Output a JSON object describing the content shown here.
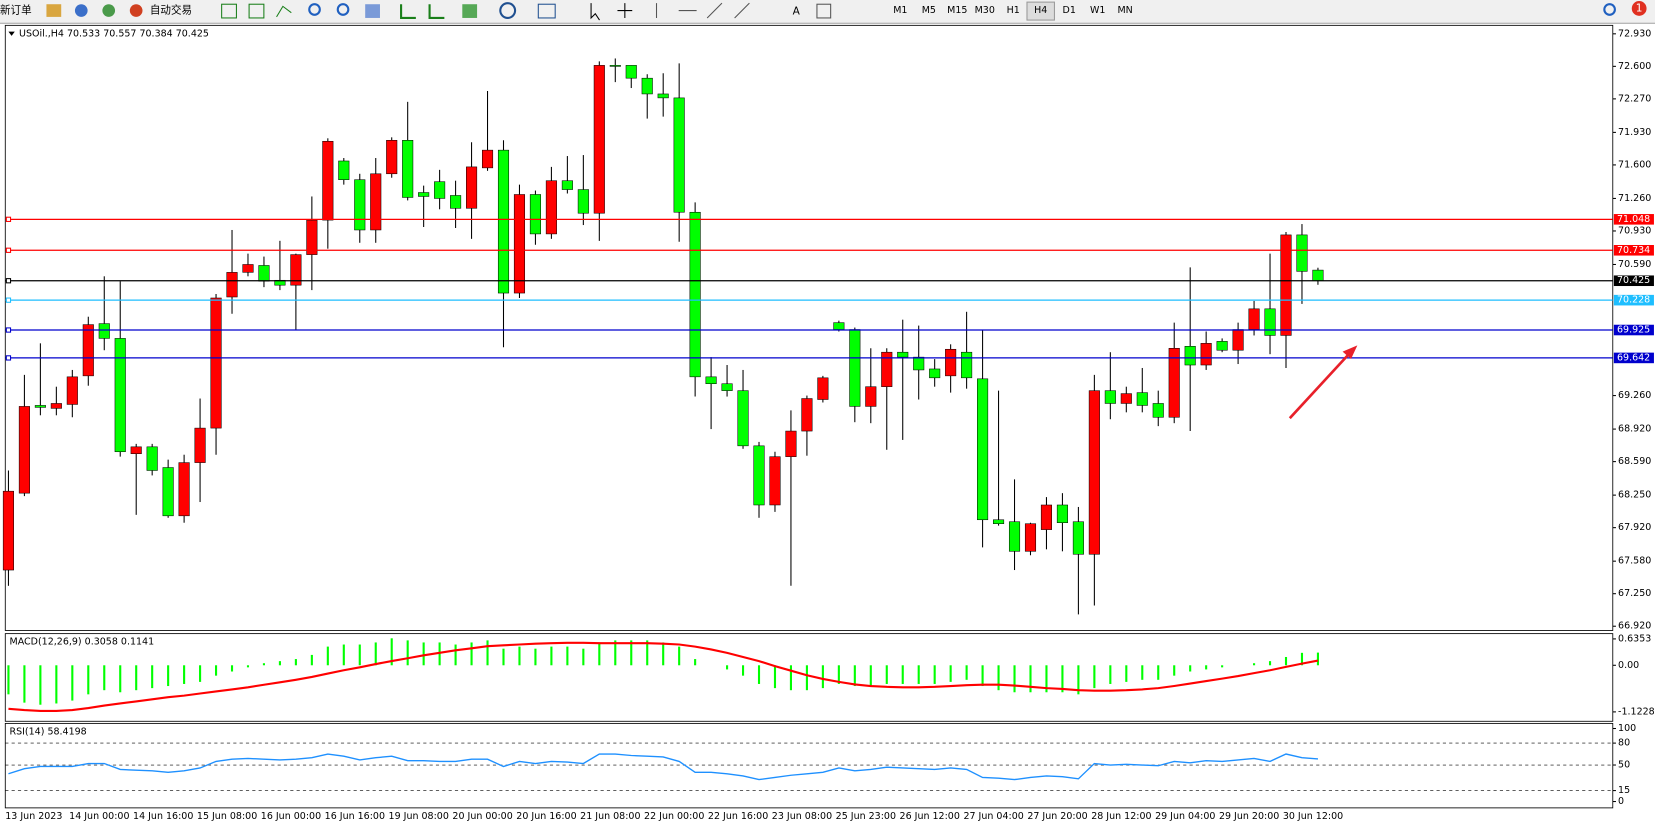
{
  "toolbar": {
    "new_order": "新订单",
    "auto_trading": "自动交易",
    "timeframes": [
      "M1",
      "M5",
      "M15",
      "M30",
      "H1",
      "H4",
      "D1",
      "W1",
      "MN"
    ],
    "notifications": 1
  },
  "chart_data": [
    {
      "type": "candlestick",
      "title": "USOil.,H4  70.533 70.557 70.384 70.425",
      "x": [
        "13 Jun 2023",
        null,
        null,
        null,
        "14 Jun 00:00",
        null,
        null,
        null,
        "14 Jun 16:00",
        null,
        null,
        null,
        "15 Jun 08:00",
        null,
        null,
        null,
        "16 Jun 00:00",
        null,
        null,
        null,
        "16 Jun 16:00",
        null,
        null,
        null,
        "19 Jun 08:00",
        null,
        null,
        null,
        "20 Jun 00:00",
        null,
        null,
        null,
        "20 Jun 16:00",
        null,
        null,
        null,
        "21 Jun 08:00",
        null,
        null,
        null,
        "22 Jun 00:00",
        null,
        null,
        null,
        "22 Jun 16:00",
        null,
        null,
        null,
        "23 Jun 08:00",
        null,
        null,
        null,
        "25 Jun 23:00",
        null,
        null,
        null,
        "26 Jun 12:00",
        null,
        null,
        null,
        "27 Jun 04:00",
        null,
        null,
        null,
        "27 Jun 20:00",
        null,
        null,
        null,
        "28 Jun 12:00",
        null,
        null,
        null,
        "29 Jun 04:00",
        null,
        null,
        null,
        "29 Jun 20:00",
        null,
        null,
        null,
        "30 Jun 12:00",
        null,
        null
      ],
      "open": [
        67.49,
        68.27,
        69.16,
        69.13,
        69.17,
        69.46,
        69.99,
        69.84,
        68.67,
        68.74,
        68.53,
        68.04,
        68.58,
        68.93,
        70.26,
        70.51,
        70.58,
        70.43,
        70.38,
        70.69,
        71.04,
        71.64,
        71.45,
        70.94,
        71.51,
        71.85,
        71.32,
        71.43,
        71.29,
        71.16,
        71.57,
        71.75,
        70.3,
        71.3,
        70.9,
        71.44,
        71.35,
        71.11,
        72.61,
        72.61,
        72.48,
        72.32,
        72.28,
        71.12,
        69.45,
        69.38,
        69.31,
        68.75,
        68.15,
        68.64,
        68.9,
        69.22,
        70.0,
        69.93,
        69.15,
        69.35,
        69.7,
        69.65,
        69.53,
        69.46,
        69.7,
        69.43,
        68.0,
        67.98,
        67.68,
        67.9,
        68.15,
        67.98,
        67.65,
        69.31,
        69.18,
        69.29,
        69.18,
        69.04,
        69.76,
        69.57,
        69.81,
        69.72,
        69.93,
        70.14,
        69.87,
        70.89,
        70.533
      ],
      "high": [
        68.5,
        69.47,
        69.79,
        69.35,
        69.52,
        70.06,
        70.47,
        70.42,
        68.77,
        68.77,
        68.61,
        68.66,
        69.23,
        70.29,
        70.94,
        70.7,
        70.67,
        70.83,
        70.7,
        71.28,
        71.87,
        71.67,
        71.51,
        71.67,
        71.88,
        72.24,
        71.39,
        71.55,
        71.44,
        71.83,
        72.35,
        71.85,
        71.4,
        71.34,
        71.58,
        71.69,
        71.7,
        72.65,
        72.68,
        72.61,
        72.52,
        72.53,
        72.63,
        71.22,
        69.65,
        69.57,
        69.52,
        68.79,
        68.69,
        69.11,
        69.26,
        69.46,
        70.02,
        69.95,
        69.74,
        69.74,
        70.03,
        69.97,
        69.63,
        69.78,
        70.11,
        69.92,
        69.31,
        68.41,
        67.97,
        68.23,
        68.27,
        68.13,
        69.47,
        69.7,
        69.35,
        69.54,
        69.31,
        70.0,
        70.56,
        69.91,
        69.84,
        70.0,
        70.22,
        70.7,
        70.92,
        71.0,
        70.557
      ],
      "low": [
        67.33,
        68.24,
        69.06,
        69.06,
        69.04,
        69.36,
        69.72,
        68.64,
        68.05,
        68.45,
        68.02,
        67.97,
        68.18,
        68.66,
        70.09,
        70.47,
        70.36,
        70.33,
        69.93,
        70.33,
        70.75,
        71.4,
        70.81,
        70.81,
        71.47,
        71.24,
        70.97,
        71.15,
        70.96,
        70.85,
        71.54,
        69.75,
        70.25,
        70.79,
        70.85,
        71.31,
        70.99,
        70.83,
        72.44,
        72.38,
        72.07,
        72.09,
        70.82,
        69.25,
        68.92,
        69.25,
        68.72,
        68.02,
        68.08,
        67.33,
        68.65,
        69.19,
        69.91,
        68.99,
        68.98,
        68.71,
        68.81,
        69.22,
        69.35,
        69.29,
        69.33,
        67.72,
        67.94,
        67.49,
        67.64,
        67.7,
        67.68,
        67.04,
        67.13,
        69.02,
        69.09,
        69.09,
        68.95,
        68.98,
        68.9,
        69.52,
        69.7,
        69.58,
        69.87,
        69.68,
        69.54,
        70.19,
        70.384
      ],
      "close": [
        68.29,
        69.15,
        69.14,
        69.18,
        69.45,
        69.98,
        69.84,
        68.69,
        68.74,
        68.5,
        68.04,
        68.58,
        68.93,
        70.25,
        70.51,
        70.59,
        70.42,
        70.38,
        70.69,
        71.04,
        71.84,
        71.45,
        70.94,
        71.51,
        71.85,
        71.27,
        71.28,
        71.26,
        71.16,
        71.58,
        71.75,
        70.3,
        71.3,
        70.9,
        71.44,
        71.35,
        71.11,
        72.61,
        72.6,
        72.48,
        72.32,
        72.28,
        71.12,
        69.45,
        69.38,
        69.31,
        68.75,
        68.15,
        68.64,
        68.9,
        69.23,
        69.44,
        69.93,
        69.15,
        69.35,
        69.7,
        69.65,
        69.52,
        69.44,
        69.73,
        69.44,
        68.0,
        67.96,
        67.68,
        67.96,
        68.15,
        67.97,
        67.65,
        69.31,
        69.18,
        69.28,
        69.16,
        69.04,
        69.74,
        69.57,
        69.79,
        69.72,
        69.93,
        70.14,
        69.87,
        70.89,
        70.52,
        70.425
      ],
      "bull_color": "#ff0000",
      "bear_color": "#00ff00",
      "ylim": [
        66.877,
        73.016
      ],
      "yticks": [
        {
          "value": 72.93,
          "label": "72.930"
        },
        {
          "value": 72.6,
          "label": "72.600"
        },
        {
          "value": 72.27,
          "label": "72.270"
        },
        {
          "value": 71.93,
          "label": "71.930"
        },
        {
          "value": 71.6,
          "label": "71.600"
        },
        {
          "value": 71.26,
          "label": "71.260"
        },
        {
          "value": 70.93,
          "label": "70.930"
        },
        {
          "value": 70.59,
          "label": "70.590"
        },
        {
          "value": 69.26,
          "label": "69.260"
        },
        {
          "value": 68.92,
          "label": "68.920"
        },
        {
          "value": 68.59,
          "label": "68.590"
        },
        {
          "value": 68.25,
          "label": "68.250"
        },
        {
          "value": 67.92,
          "label": "67.920"
        },
        {
          "value": 67.58,
          "label": "67.580"
        },
        {
          "value": 67.25,
          "label": "67.250"
        },
        {
          "value": 66.92,
          "label": "66.920"
        }
      ],
      "hlines": [
        {
          "value": 71.048,
          "color": "#ff0000"
        },
        {
          "value": 70.734,
          "color": "#ff0000"
        },
        {
          "value": 70.425,
          "color": "#000000"
        },
        {
          "value": 70.228,
          "color": "#1ebeff"
        },
        {
          "value": 69.925,
          "color": "#0000cd"
        },
        {
          "value": 69.642,
          "color": "#0000cd"
        }
      ]
    },
    {
      "type": "macd",
      "title": "MACD(12,26,9) 0.3058 0.1141",
      "values": [
        -0.7,
        -0.9,
        -0.95,
        -0.92,
        -0.85,
        -0.7,
        -0.6,
        -0.65,
        -0.6,
        -0.55,
        -0.5,
        -0.45,
        -0.4,
        -0.25,
        -0.15,
        -0.05,
        0.05,
        0.1,
        0.15,
        0.25,
        0.45,
        0.5,
        0.5,
        0.55,
        0.65,
        0.6,
        0.55,
        0.55,
        0.5,
        0.55,
        0.6,
        0.4,
        0.45,
        0.4,
        0.45,
        0.45,
        0.4,
        0.55,
        0.6,
        0.6,
        0.6,
        0.55,
        0.45,
        0.15,
        0.0,
        -0.1,
        -0.25,
        -0.45,
        -0.55,
        -0.6,
        -0.6,
        -0.55,
        -0.45,
        -0.5,
        -0.5,
        -0.45,
        -0.45,
        -0.45,
        -0.45,
        -0.4,
        -0.35,
        -0.5,
        -0.6,
        -0.65,
        -0.65,
        -0.65,
        -0.65,
        -0.7,
        -0.55,
        -0.45,
        -0.4,
        -0.35,
        -0.35,
        -0.25,
        -0.15,
        -0.1,
        -0.05,
        0.0,
        0.05,
        0.1,
        0.2,
        0.3,
        0.3058
      ],
      "signal": [
        -1.05,
        -1.08,
        -1.1,
        -1.1,
        -1.08,
        -1.03,
        -0.97,
        -0.92,
        -0.87,
        -0.82,
        -0.77,
        -0.73,
        -0.68,
        -0.63,
        -0.58,
        -0.53,
        -0.47,
        -0.41,
        -0.35,
        -0.28,
        -0.2,
        -0.12,
        -0.05,
        0.03,
        0.1,
        0.17,
        0.24,
        0.3,
        0.36,
        0.41,
        0.46,
        0.48,
        0.5,
        0.52,
        0.53,
        0.54,
        0.54,
        0.53,
        0.53,
        0.53,
        0.53,
        0.52,
        0.5,
        0.45,
        0.38,
        0.3,
        0.2,
        0.1,
        -0.02,
        -0.13,
        -0.24,
        -0.33,
        -0.4,
        -0.46,
        -0.5,
        -0.52,
        -0.53,
        -0.53,
        -0.52,
        -0.5,
        -0.48,
        -0.47,
        -0.47,
        -0.49,
        -0.52,
        -0.55,
        -0.57,
        -0.6,
        -0.61,
        -0.61,
        -0.6,
        -0.58,
        -0.55,
        -0.5,
        -0.44,
        -0.38,
        -0.32,
        -0.26,
        -0.19,
        -0.12,
        -0.04,
        0.04,
        0.1141
      ],
      "color": "#00ff00",
      "signal_color": "#ff0000",
      "ylim": [
        -1.349,
        0.7625
      ],
      "yticks": [
        0.6353,
        {
          "value": 0,
          "label": "0.00"
        },
        -1.1228
      ]
    },
    {
      "type": "line",
      "title": "RSI(14) 58.4198",
      "values": [
        38,
        45,
        48,
        48,
        48,
        52,
        52,
        44,
        43,
        42,
        40,
        42,
        46,
        55,
        58,
        59,
        58,
        57,
        58,
        60,
        65,
        62,
        57,
        60,
        62,
        56,
        56,
        55,
        55,
        58,
        58,
        48,
        55,
        52,
        55,
        54,
        52,
        65,
        65,
        63,
        62,
        61,
        55,
        40,
        40,
        38,
        35,
        30,
        33,
        36,
        38,
        40,
        46,
        42,
        44,
        47,
        46,
        45,
        44,
        46,
        44,
        33,
        32,
        30,
        33,
        35,
        34,
        31,
        52,
        50,
        51,
        50,
        49,
        55,
        53,
        56,
        55,
        57,
        59,
        55,
        65,
        60,
        58.4198
      ],
      "color": "#1e90ff",
      "ylim": [
        -8.7,
        107
      ],
      "yticks": [
        100,
        80,
        50,
        15,
        0
      ],
      "levels": [
        80,
        50,
        15
      ]
    }
  ]
}
